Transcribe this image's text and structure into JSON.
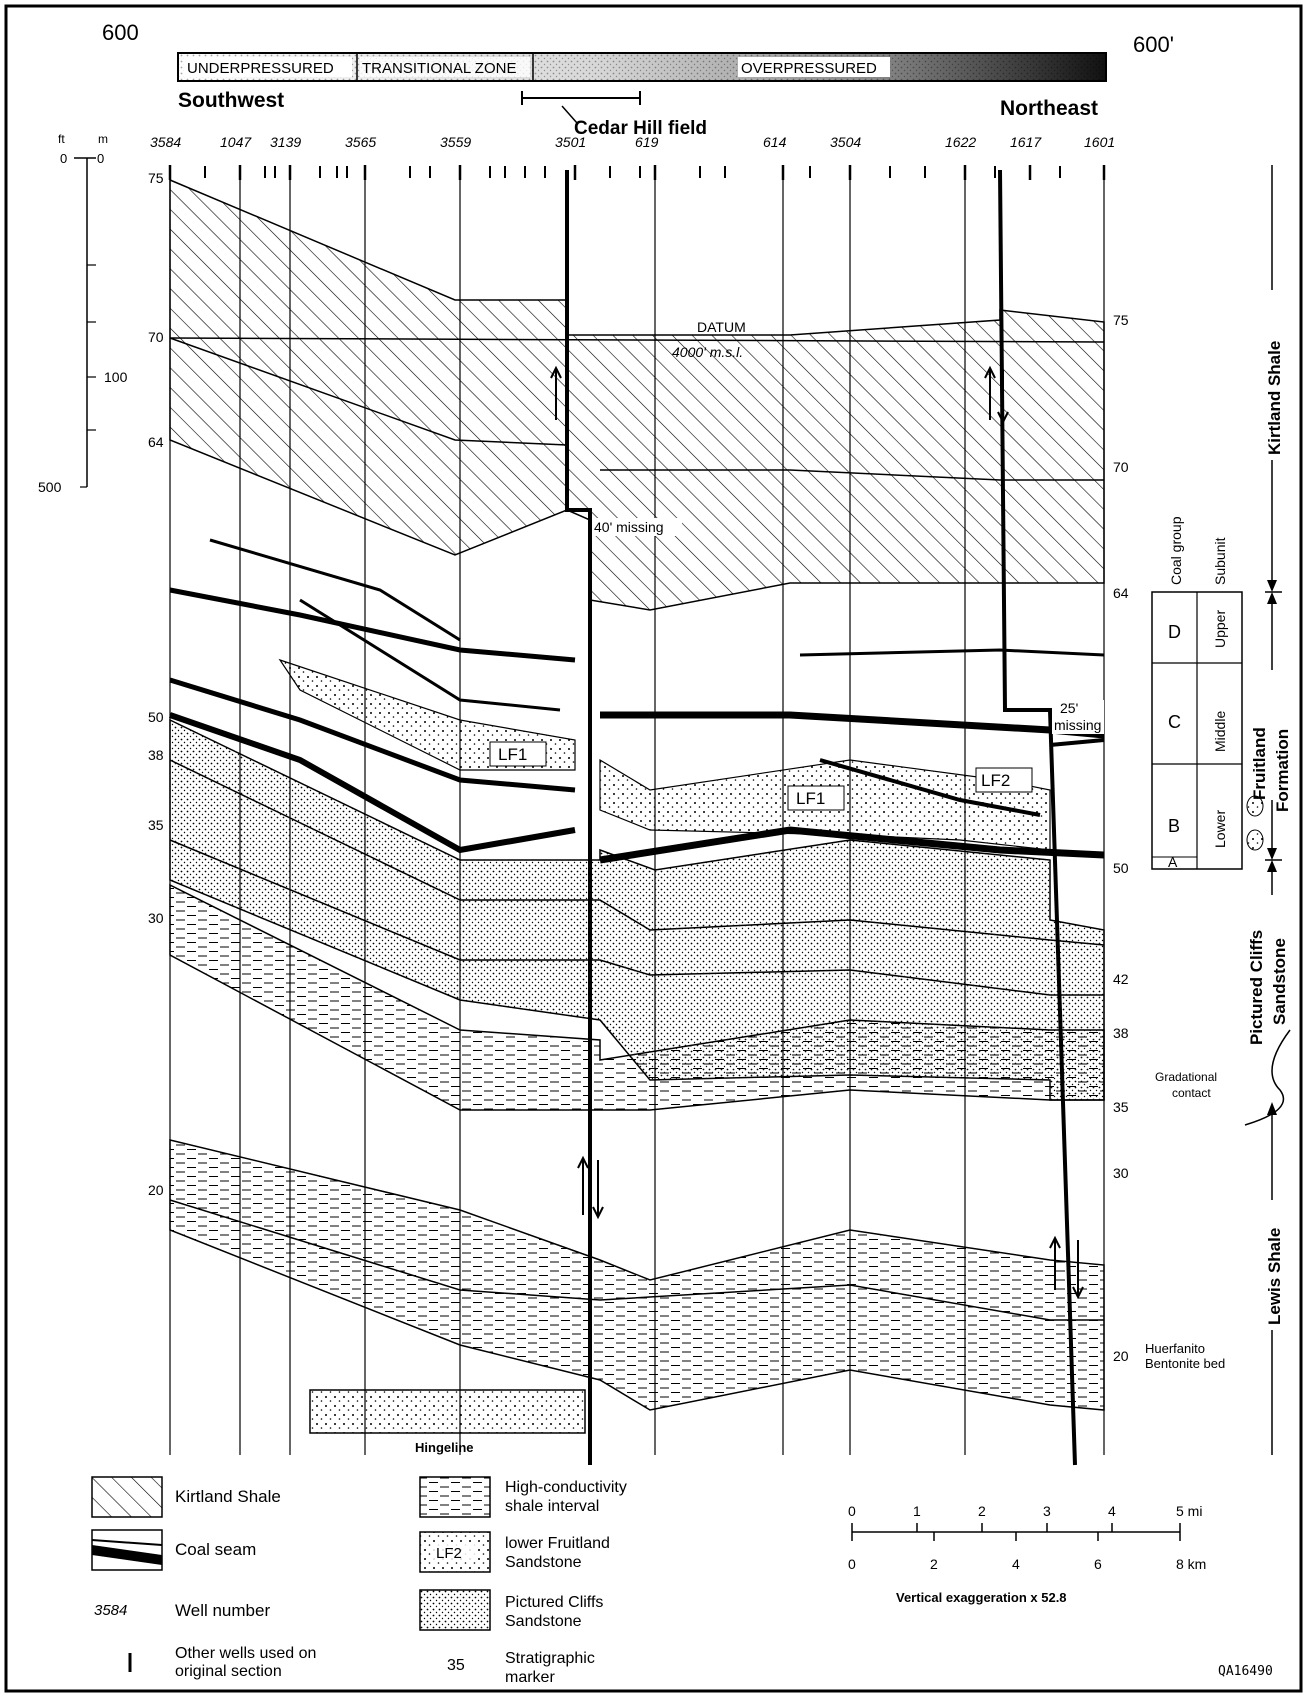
{
  "corner_left": "600",
  "corner_right": "600'",
  "pressure_bar": {
    "underpressured": "UNDERPRESSURED",
    "transitional": "TRANSITIONAL ZONE",
    "overpressured": "OVERPRESSURED"
  },
  "direction_left": "Southwest",
  "direction_right": "Northeast",
  "cedar_hill": "Cedar Hill field",
  "wells": [
    {
      "label": "3584"
    },
    {
      "label": "1047"
    },
    {
      "label": "3139"
    },
    {
      "label": "3565"
    },
    {
      "label": "3559"
    },
    {
      "label": "3501"
    },
    {
      "label": "619"
    },
    {
      "label": "614"
    },
    {
      "label": "3504"
    },
    {
      "label": "1622"
    },
    {
      "label": "1617"
    },
    {
      "label": "1601"
    }
  ],
  "scale_left": {
    "ft": "ft",
    "m": "m",
    "zero_ft": "0",
    "zero_m": "0",
    "m100": "100",
    "ft500": "500"
  },
  "left_markers": [
    "75",
    "70",
    "64",
    "50",
    "38",
    "35",
    "30",
    "20"
  ],
  "right_markers": [
    "75",
    "70",
    "64",
    "50",
    "42",
    "38",
    "35",
    "30",
    "20"
  ],
  "annotations": {
    "datum": "DATUM",
    "msl": "4000' m.s.l.",
    "missing_40": "40' missing",
    "missing_25_a": "25'",
    "missing_25_b": "missing",
    "lf1_left": "LF1",
    "lf1_right": "LF1",
    "lf2": "LF2",
    "hingeline": "Hingeline",
    "huerfanito_1": "Huerfanito",
    "huerfanito_2": "Bentonite bed",
    "gradational_1": "Gradational",
    "gradational_2": "contact"
  },
  "formations": {
    "kirtland": "Kirtland Shale",
    "fruitland_1": "Fruitland",
    "fruitland_2": "Formation",
    "pictured_1": "Pictured Cliffs",
    "pictured_2": "Sandstone",
    "lewis": "Lewis Shale"
  },
  "coal_table": {
    "col1": "Coal group",
    "col2": "Subunit",
    "rows": [
      {
        "group": "D",
        "subunit": "Upper"
      },
      {
        "group": "C",
        "subunit": "Middle"
      },
      {
        "group": "B",
        "subunit": "Lower"
      }
    ],
    "a_label": "A"
  },
  "legend": {
    "kirtland": "Kirtland Shale",
    "coal": "Coal seam",
    "well_number_sample": "3584",
    "well_number": "Well number",
    "other_wells_1": "Other wells used on",
    "other_wells_2": "original section",
    "highcond_1": "High-conductivity",
    "highcond_2": "shale interval",
    "lf2_sample": "LF2",
    "lowerfruit_1": "lower Fruitland",
    "lowerfruit_2": "Sandstone",
    "pictured_1": "Pictured Cliffs",
    "pictured_2": "Sandstone",
    "marker_sample": "35",
    "strat_1": "Stratigraphic",
    "strat_2": "marker"
  },
  "scale_bar": {
    "mi": [
      "0",
      "1",
      "2",
      "3",
      "4",
      "5 mi"
    ],
    "km": [
      "0",
      "2",
      "4",
      "6",
      "8 km"
    ],
    "vertical_exaggeration": "Vertical exaggeration x 52.8"
  },
  "figure_id": "QA16490"
}
